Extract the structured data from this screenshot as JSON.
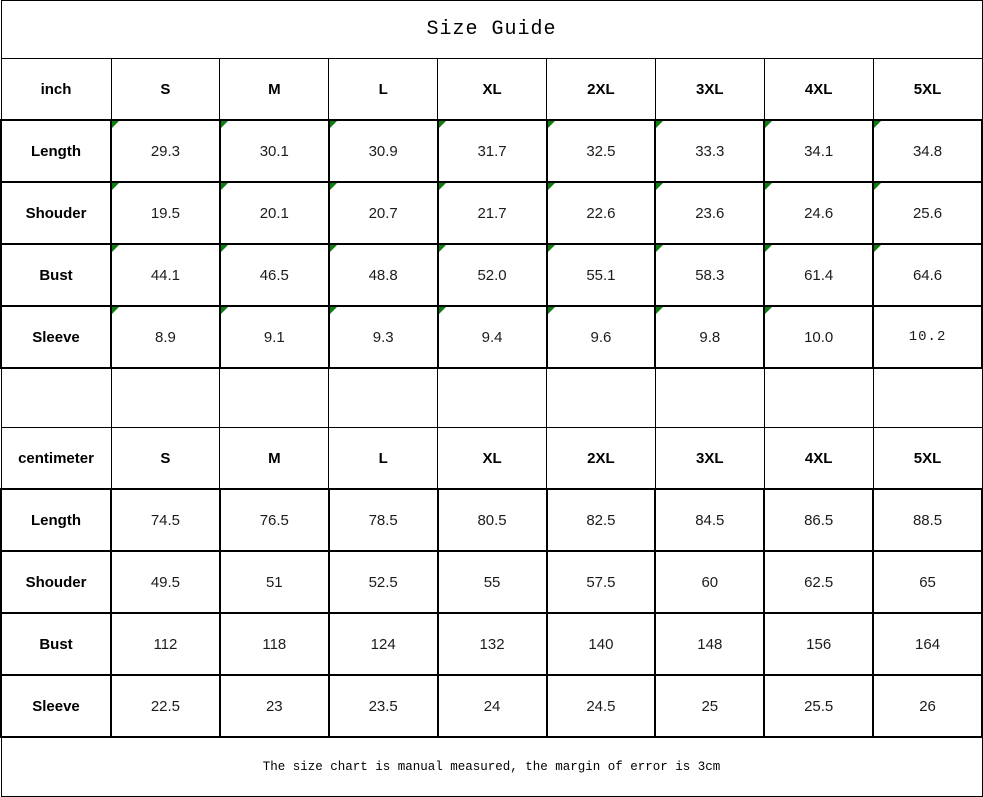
{
  "title": "Size Guide",
  "footer_note": "The size chart is manual measured, the margin of error is 3cm",
  "colors": {
    "border": "#000000",
    "flag_green": "#0e7d10",
    "background": "#ffffff",
    "text": "#000000"
  },
  "chart_data": {
    "type": "table",
    "title": "Size Guide",
    "note": "The size chart is manual measured, the margin of error is 3cm",
    "sections": [
      {
        "unit_label": "inch",
        "columns": [
          "S",
          "M",
          "L",
          "XL",
          "2XL",
          "3XL",
          "4XL",
          "5XL"
        ],
        "rows": [
          {
            "label": "Length",
            "values": [
              "29.3",
              "30.1",
              "30.9",
              "31.7",
              "32.5",
              "33.3",
              "34.1",
              "34.8"
            ],
            "flags": [
              1,
              1,
              1,
              1,
              1,
              1,
              1,
              1
            ]
          },
          {
            "label": "Shouder",
            "values": [
              "19.5",
              "20.1",
              "20.7",
              "21.7",
              "22.6",
              "23.6",
              "24.6",
              "25.6"
            ],
            "flags": [
              1,
              1,
              1,
              1,
              1,
              1,
              1,
              1
            ]
          },
          {
            "label": "Bust",
            "values": [
              "44.1",
              "46.5",
              "48.8",
              "52.0",
              "55.1",
              "58.3",
              "61.4",
              "64.6"
            ],
            "flags": [
              1,
              1,
              1,
              1,
              1,
              1,
              1,
              1
            ]
          },
          {
            "label": "Sleeve",
            "values": [
              "8.9",
              "9.1",
              "9.3",
              "9.4",
              "9.6",
              "9.8",
              "10.0",
              "10.2"
            ],
            "flags": [
              1,
              1,
              1,
              1,
              1,
              1,
              1,
              0
            ]
          }
        ]
      },
      {
        "unit_label": "centimeter",
        "columns": [
          "S",
          "M",
          "L",
          "XL",
          "2XL",
          "3XL",
          "4XL",
          "5XL"
        ],
        "rows": [
          {
            "label": "Length",
            "values": [
              "74.5",
              "76.5",
              "78.5",
              "80.5",
              "82.5",
              "84.5",
              "86.5",
              "88.5"
            ]
          },
          {
            "label": "Shouder",
            "values": [
              "49.5",
              "51",
              "52.5",
              "55",
              "57.5",
              "60",
              "62.5",
              "65"
            ]
          },
          {
            "label": "Bust",
            "values": [
              "112",
              "118",
              "124",
              "132",
              "140",
              "148",
              "156",
              "164"
            ]
          },
          {
            "label": "Sleeve",
            "values": [
              "22.5",
              "23",
              "23.5",
              "24",
              "24.5",
              "25",
              "25.5",
              "26"
            ]
          }
        ]
      }
    ]
  }
}
